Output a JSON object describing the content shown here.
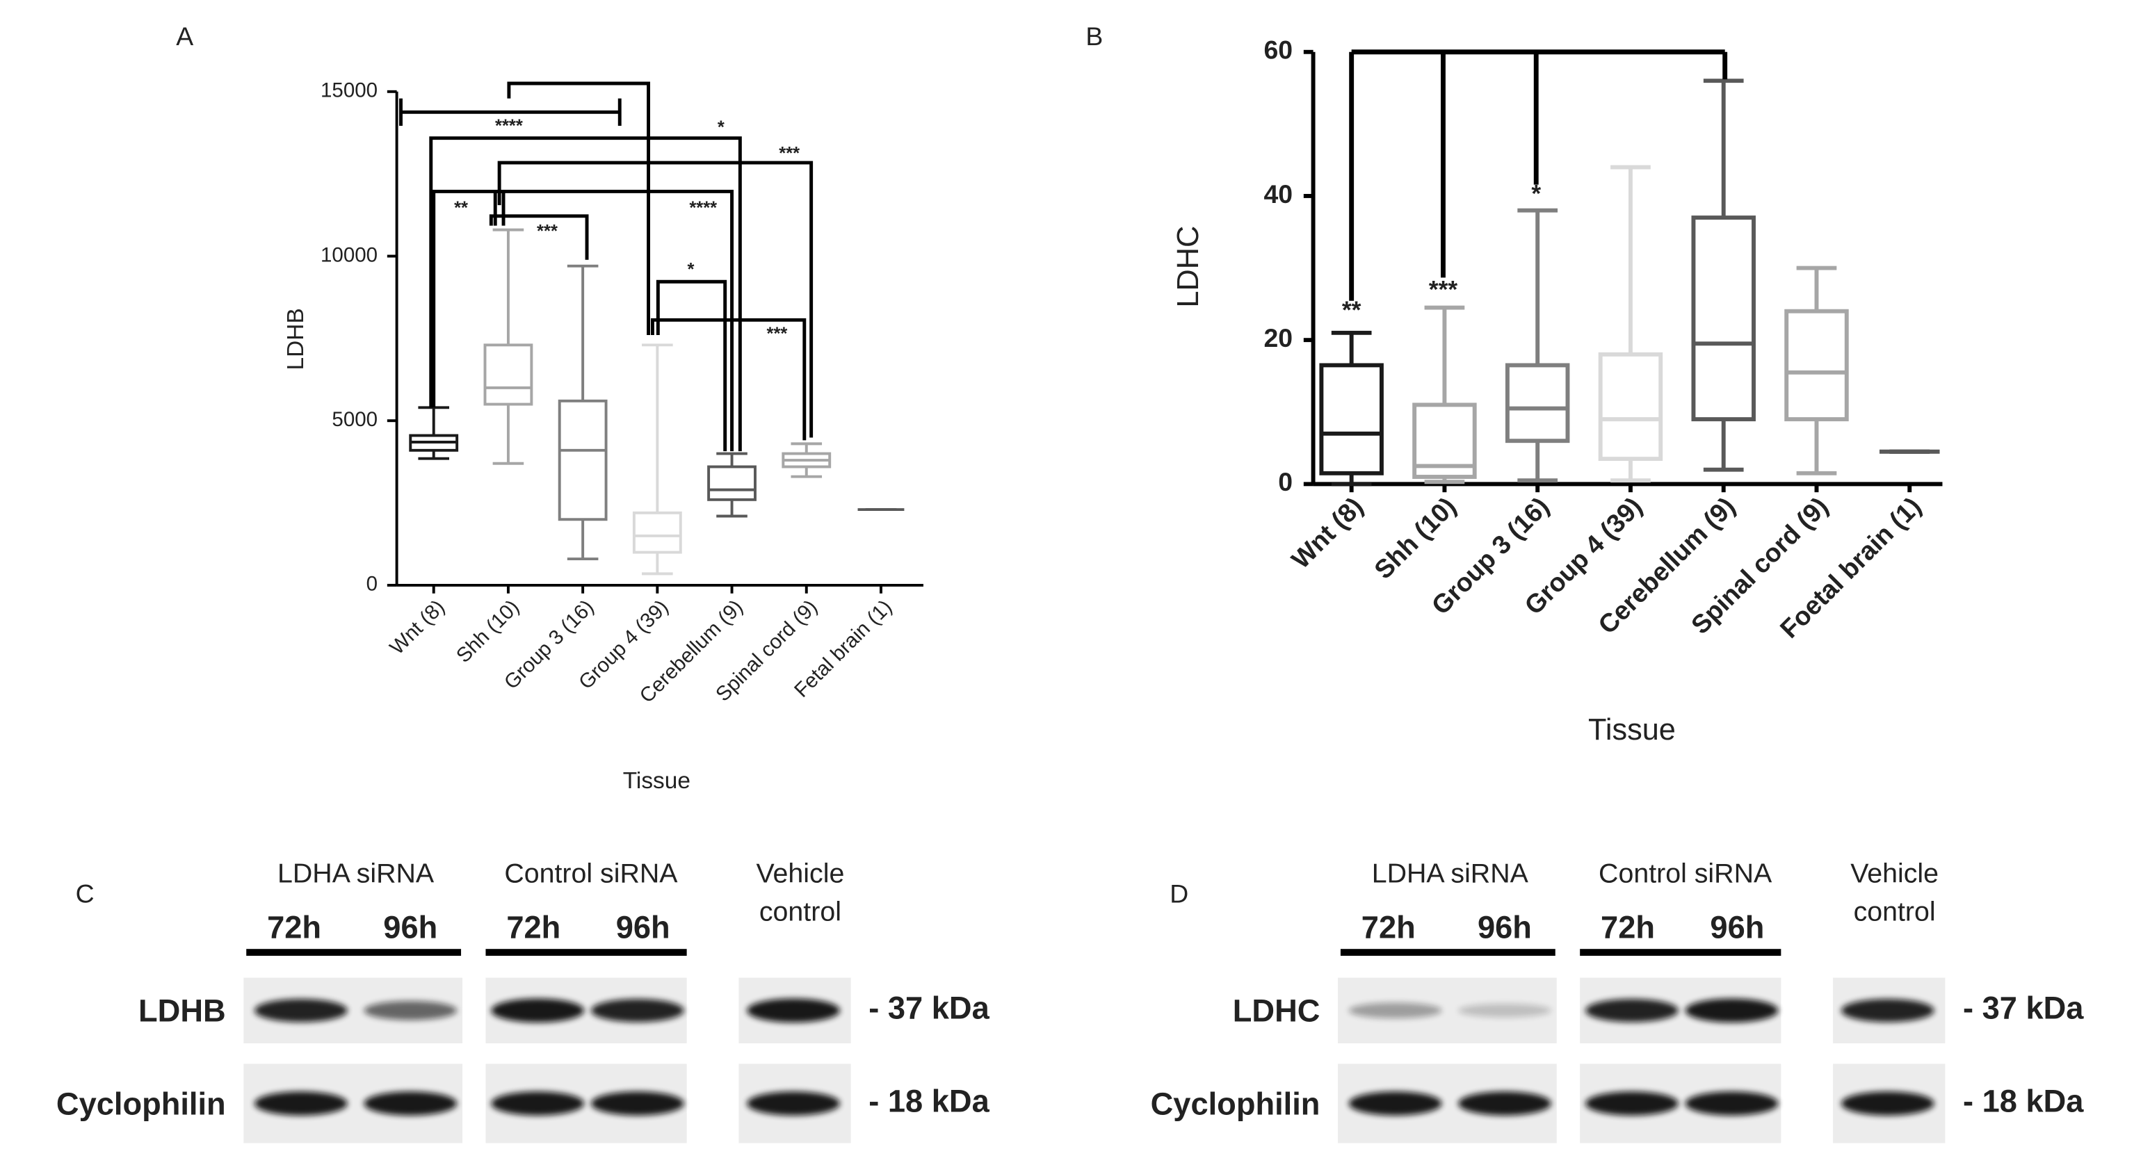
{
  "chart_data": [
    {
      "type": "box",
      "panel_label": "A",
      "ylabel": "LDHB",
      "xlabel": "Tissue",
      "categories": [
        "Wnt (8)",
        "Shh (10)",
        "Group 3 (16)",
        "Group 4 (39)",
        "Cerebellum (9)",
        "Spinal cord (9)",
        "Fetal brain (1)"
      ],
      "stats": [
        {
          "min": 3850,
          "q1": 4100,
          "median": 4350,
          "q3": 4550,
          "max": 5400
        },
        {
          "min": 3700,
          "q1": 5500,
          "median": 6000,
          "q3": 7300,
          "max": 10800
        },
        {
          "min": 800,
          "q1": 2000,
          "median": 4100,
          "q3": 5600,
          "max": 9700
        },
        {
          "min": 350,
          "q1": 1000,
          "median": 1500,
          "q3": 2200,
          "max": 7300
        },
        {
          "min": 2100,
          "q1": 2600,
          "median": 2900,
          "q3": 3600,
          "max": 4000
        },
        {
          "min": 3300,
          "q1": 3600,
          "median": 3800,
          "q3": 4000,
          "max": 4300
        },
        {
          "min": 2300,
          "q1": 2300,
          "median": 2300,
          "q3": 2300,
          "max": 2300
        }
      ],
      "colors": [
        "#1a1a1a",
        "#a6a6a6",
        "#7f7f7f",
        "#d9d9d9",
        "#595959",
        "#a6a6a6",
        "#595959"
      ],
      "ylim": [
        0,
        15000
      ],
      "yticks": [
        0,
        5000,
        10000,
        15000
      ],
      "annotations": [
        "****",
        "*",
        "***",
        "**",
        "****",
        "***",
        "*",
        "***"
      ]
    },
    {
      "type": "box",
      "panel_label": "B",
      "ylabel": "LDHC",
      "xlabel": "Tissue",
      "categories": [
        "Wnt (8)",
        "Shh (10)",
        "Group 3 (16)",
        "Group 4 (39)",
        "Cerebellum (9)",
        "Spinal cord (9)",
        "Foetal brain (1)"
      ],
      "stats": [
        {
          "min": 0,
          "q1": 1.5,
          "median": 7,
          "q3": 16.5,
          "max": 21
        },
        {
          "min": 0.3,
          "q1": 1,
          "median": 2.5,
          "q3": 11,
          "max": 24.5
        },
        {
          "min": 0.5,
          "q1": 6,
          "median": 10.5,
          "q3": 16.5,
          "max": 38
        },
        {
          "min": 0.5,
          "q1": 3.5,
          "median": 9,
          "q3": 18,
          "max": 44
        },
        {
          "min": 2,
          "q1": 9,
          "median": 19.5,
          "q3": 37,
          "max": 56
        },
        {
          "min": 1.5,
          "q1": 9,
          "median": 15.5,
          "q3": 24,
          "max": 30
        },
        {
          "min": 4.5,
          "q1": 4.5,
          "median": 4.5,
          "q3": 4.5,
          "max": 4.5
        }
      ],
      "colors": [
        "#1a1a1a",
        "#a6a6a6",
        "#7f7f7f",
        "#d9d9d9",
        "#595959",
        "#a6a6a6",
        "#595959"
      ],
      "ylim": [
        0,
        60
      ],
      "yticks": [
        0,
        20,
        40,
        60
      ],
      "annotations": [
        "**",
        "***",
        "*"
      ]
    }
  ],
  "blots": [
    {
      "panel_label": "C",
      "groups": [
        "LDHA siRNA",
        "Control siRNA"
      ],
      "vehicle": [
        "Vehicle",
        "control"
      ],
      "times": [
        "72h",
        "96h",
        "72h",
        "96h"
      ],
      "rows": [
        "LDHB",
        "Cyclophilin"
      ],
      "markers": [
        "- 37 kDa",
        "- 18 kDa"
      ]
    },
    {
      "panel_label": "D",
      "groups": [
        "LDHA siRNA",
        "Control siRNA"
      ],
      "vehicle": [
        "Vehicle",
        "control"
      ],
      "times": [
        "72h",
        "96h",
        "72h",
        "96h"
      ],
      "rows": [
        "LDHC",
        "Cyclophilin"
      ],
      "markers": [
        "- 37 kDa",
        "- 18 kDa"
      ]
    }
  ]
}
